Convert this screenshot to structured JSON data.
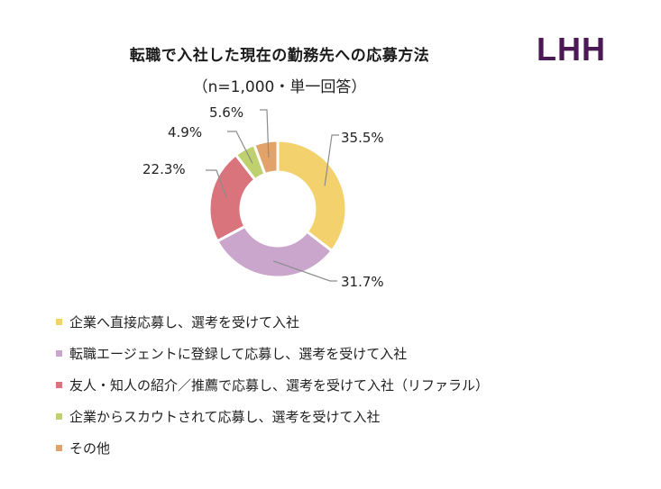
{
  "header": {
    "title": "転職で入社した現在の勤務先への応募方法",
    "subtitle": "（n=1,000・単一回答）",
    "logo": "LHH"
  },
  "colors": {
    "logo": "#4b1a55",
    "series": [
      "#f3d16c",
      "#caa6cc",
      "#d9747d",
      "#bfd16f",
      "#e2a36a"
    ]
  },
  "chart_data": {
    "type": "pie",
    "variant": "donut",
    "title": "転職で入社した現在の勤務先への応募方法",
    "subtitle": "（n=1,000・単一回答）",
    "categories": [
      "企業へ直接応募し、選考を受けて入社",
      "転職エージェントに登録して応募し、選考を受けて入社",
      "友人・知人の紹介／推薦で応募し、選考を受けて入社（リファラル）",
      "企業からスカウトされて応募し、選考を受けて入社",
      "その他"
    ],
    "values": [
      35.5,
      31.7,
      22.3,
      4.9,
      5.6
    ],
    "labels": [
      "35.5%",
      "31.7%",
      "22.3%",
      "4.9%",
      "5.6%"
    ],
    "unit": "%",
    "legend_position": "bottom"
  },
  "legend": {
    "items": [
      {
        "label": "企業へ直接応募し、選考を受けて入社"
      },
      {
        "label": "転職エージェントに登録して応募し、選考を受けて入社"
      },
      {
        "label": "友人・知人の紹介／推薦で応募し、選考を受けて入社（リファラル）"
      },
      {
        "label": "企業からスカウトされて応募し、選考を受けて入社"
      },
      {
        "label": "その他"
      }
    ]
  }
}
